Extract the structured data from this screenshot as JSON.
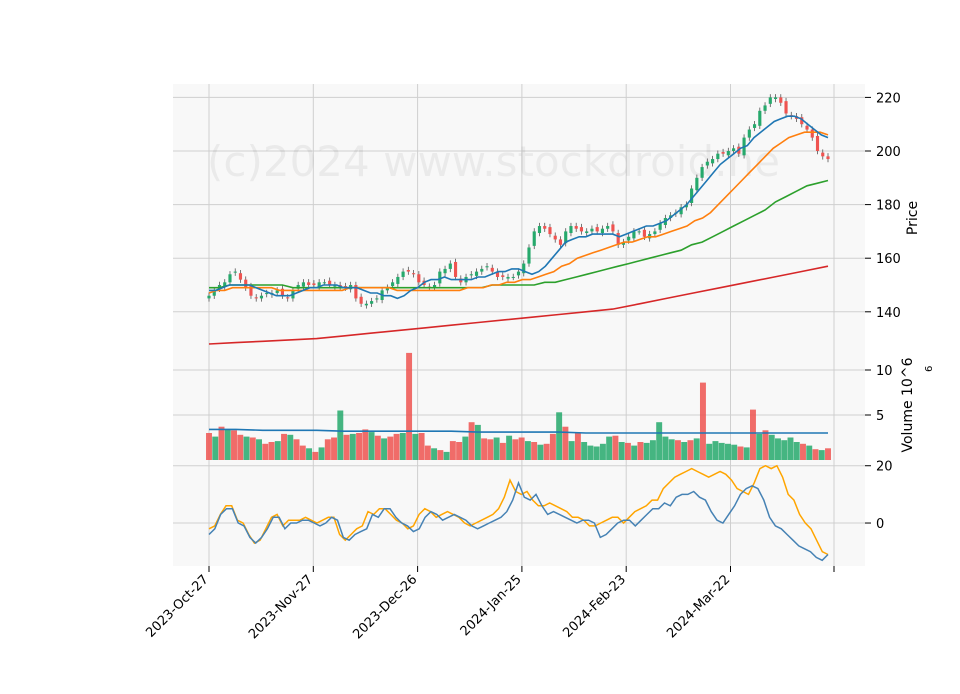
{
  "chart_data": {
    "type": "candlestick",
    "watermark": "(c)2024 www.stockdroid.ne",
    "x_dates": [
      "2023-Oct-27",
      "2023-Nov-27",
      "2023-Dec-26",
      "2024-Jan-25",
      "2024-Feb-23",
      "2024-Mar-22"
    ],
    "price_panel": {
      "ylabel": "Price",
      "yticks": [
        140,
        160,
        180,
        200,
        220
      ],
      "ylim": [
        125,
        225
      ],
      "colors": {
        "up": "#26a96c",
        "down": "#ef5350",
        "ma_fast": "#1f77b4",
        "ma_mid": "#ff7f0e",
        "ma_slow": "#2ca02c",
        "ma_long": "#d62728"
      },
      "closes": [
        146,
        148,
        150,
        151,
        154,
        155,
        152,
        149,
        146,
        145,
        146,
        147,
        147,
        148,
        146,
        145,
        148,
        150,
        151,
        150,
        150,
        151,
        151,
        150,
        150,
        149,
        149,
        150,
        145,
        143,
        143,
        144,
        145,
        148,
        149,
        151,
        153,
        155,
        155,
        154,
        151,
        150,
        149,
        150,
        155,
        156,
        158,
        153,
        151,
        153,
        154,
        155,
        156,
        157,
        155,
        153,
        153,
        153,
        153,
        155,
        158,
        164,
        170,
        172,
        171,
        169,
        167,
        165,
        170,
        172,
        171,
        170,
        170,
        171,
        170,
        171,
        172,
        170,
        165,
        166,
        168,
        170,
        170,
        168,
        169,
        170,
        173,
        175,
        176,
        177,
        179,
        180,
        186,
        190,
        194,
        196,
        197,
        199,
        199,
        200,
        201,
        199,
        205,
        208,
        210,
        215,
        217,
        220,
        220,
        218,
        214,
        213,
        212,
        210,
        208,
        205,
        200,
        198,
        197
      ],
      "ma_fast": [
        148,
        148,
        149,
        150,
        150,
        150,
        150,
        149,
        148,
        147,
        146,
        146,
        146,
        147,
        148,
        149,
        149,
        150,
        150,
        150,
        149,
        149,
        149,
        148,
        147,
        147,
        146,
        146,
        145,
        146,
        148,
        149,
        151,
        152,
        152,
        153,
        152,
        152,
        152,
        152,
        153,
        153,
        154,
        155,
        155,
        156,
        156,
        155,
        154,
        155,
        157,
        160,
        163,
        166,
        167,
        168,
        168,
        169,
        169,
        169,
        169,
        168,
        169,
        170,
        171,
        172,
        172,
        173,
        174,
        176,
        178,
        180,
        183,
        186,
        189,
        192,
        195,
        197,
        199,
        201,
        202,
        205,
        207,
        209,
        211,
        212,
        213,
        213,
        212,
        210,
        208,
        206,
        205
      ],
      "ma_mid": [
        147,
        148,
        148,
        149,
        149,
        149,
        149,
        149,
        149,
        148,
        148,
        148,
        148,
        148,
        148,
        148,
        148,
        148,
        149,
        149,
        149,
        149,
        149,
        149,
        148,
        148,
        148,
        148,
        148,
        148,
        148,
        148,
        148,
        149,
        149,
        149,
        150,
        150,
        151,
        151,
        152,
        152,
        153,
        154,
        155,
        157,
        158,
        160,
        161,
        162,
        163,
        164,
        165,
        166,
        166,
        167,
        168,
        168,
        169,
        170,
        171,
        172,
        174,
        175,
        177,
        180,
        183,
        186,
        189,
        192,
        195,
        198,
        201,
        203,
        205,
        206,
        207,
        207,
        207,
        206
      ],
      "ma_slow": [
        149,
        149,
        150,
        150,
        150,
        150,
        150,
        150,
        149,
        149,
        149,
        149,
        149,
        149,
        149,
        149,
        149,
        149,
        149,
        149,
        149,
        149,
        149,
        149,
        149,
        149,
        149,
        150,
        150,
        150,
        150,
        150,
        151,
        151,
        152,
        153,
        154,
        155,
        156,
        157,
        158,
        159,
        160,
        161,
        162,
        163,
        165,
        166,
        168,
        170,
        172,
        174,
        176,
        178,
        181,
        183,
        185,
        187,
        188,
        189
      ],
      "ma_long": [
        128,
        128.5,
        129,
        129.5,
        130,
        131,
        132,
        133,
        134,
        135,
        136,
        137,
        138,
        139,
        140,
        141,
        143,
        145,
        147,
        149,
        151,
        153,
        155,
        157
      ]
    },
    "volume_panel": {
      "ylabel": "Volume  10^6",
      "yticks": [
        5,
        10
      ],
      "ylim": [
        0,
        12
      ],
      "volumes": [
        3.0,
        2.6,
        3.7,
        3.4,
        3.3,
        2.8,
        2.6,
        2.5,
        2.3,
        1.8,
        2.0,
        2.1,
        2.9,
        2.8,
        2.3,
        1.6,
        1.3,
        0.9,
        1.4,
        2.3,
        2.5,
        5.5,
        2.8,
        2.9,
        3.0,
        3.4,
        3.1,
        2.7,
        2.4,
        2.6,
        2.9,
        3.0,
        11.9,
        2.9,
        3.0,
        1.6,
        1.3,
        1.1,
        0.9,
        2.1,
        2.0,
        2.6,
        4.2,
        3.9,
        2.4,
        2.3,
        2.5,
        1.9,
        2.7,
        2.3,
        2.5,
        2.1,
        2.0,
        1.7,
        1.8,
        2.9,
        5.3,
        3.7,
        2.1,
        3.0,
        2.0,
        1.6,
        1.5,
        1.8,
        2.6,
        2.7,
        2.0,
        1.9,
        1.6,
        2.0,
        1.9,
        2.2,
        4.2,
        2.6,
        2.3,
        2.2,
        2.0,
        2.2,
        2.4,
        8.6,
        1.8,
        2.1,
        1.9,
        1.8,
        1.7,
        1.5,
        1.4,
        5.6,
        2.9,
        3.3,
        2.8,
        2.4,
        2.2,
        2.5,
        2.0,
        1.8,
        1.6,
        1.2,
        1.1,
        1.3
      ],
      "avg_line": [
        3.4,
        3.4,
        3.3,
        3.3,
        3.3,
        3.2,
        3.2,
        3.2,
        3.2,
        3.2,
        3.1,
        3.1,
        3.1,
        3.1,
        3.0,
        3.0,
        3.0,
        3.0,
        3.0,
        3.0,
        3.0,
        3.0,
        3.0,
        3.0
      ]
    },
    "oscillator_panel": {
      "yticks": [
        0,
        20
      ],
      "ylim": [
        -15,
        22
      ],
      "colors": {
        "line1": "#4682b4",
        "line2": "#ffa500"
      },
      "line1": [
        -4,
        -2,
        3,
        5,
        5,
        0,
        -1,
        -5,
        -7,
        -5,
        -2,
        2,
        2,
        -2,
        0,
        0,
        1,
        1,
        0,
        -1,
        0,
        2,
        1,
        -5,
        -6,
        -4,
        -3,
        -2,
        3,
        2,
        5,
        5,
        2,
        0,
        -1,
        -3,
        -2,
        2,
        4,
        3,
        1,
        2,
        3,
        2,
        1,
        -1,
        -2,
        -1,
        0,
        1,
        2,
        4,
        8,
        14,
        9,
        8,
        10,
        6,
        3,
        4,
        3,
        2,
        1,
        0,
        1,
        1,
        0,
        -5,
        -4,
        -2,
        0,
        1,
        1,
        -1,
        1,
        3,
        5,
        5,
        7,
        6,
        9,
        10,
        10,
        11,
        9,
        8,
        4,
        1,
        0,
        3,
        6,
        10,
        12,
        13,
        12,
        8,
        2,
        -1,
        -2,
        -4,
        -6,
        -8,
        -9,
        -10,
        -12,
        -13,
        -11
      ],
      "line2": [
        -2,
        -1,
        3,
        6,
        6,
        1,
        0,
        -4,
        -7,
        -6,
        -2,
        2,
        3,
        -1,
        1,
        1,
        1,
        2,
        1,
        0,
        1,
        2,
        2,
        -4,
        -6,
        -4,
        -2,
        -1,
        4,
        3,
        5,
        5,
        3,
        1,
        0,
        -2,
        -1,
        3,
        5,
        4,
        2,
        3,
        4,
        3,
        2,
        0,
        -1,
        0,
        1,
        2,
        3,
        5,
        9,
        15,
        11,
        10,
        11,
        8,
        6,
        6,
        7,
        6,
        5,
        4,
        2,
        2,
        1,
        -1,
        -1,
        0,
        1,
        2,
        2,
        0,
        2,
        4,
        5,
        6,
        8,
        8,
        12,
        14,
        16,
        17,
        18,
        19,
        18,
        17,
        16,
        17,
        18,
        17,
        15,
        12,
        11,
        10,
        14,
        19,
        20,
        19,
        20,
        16,
        10,
        8,
        3,
        0,
        -2,
        -6,
        -10,
        -11
      ]
    }
  }
}
